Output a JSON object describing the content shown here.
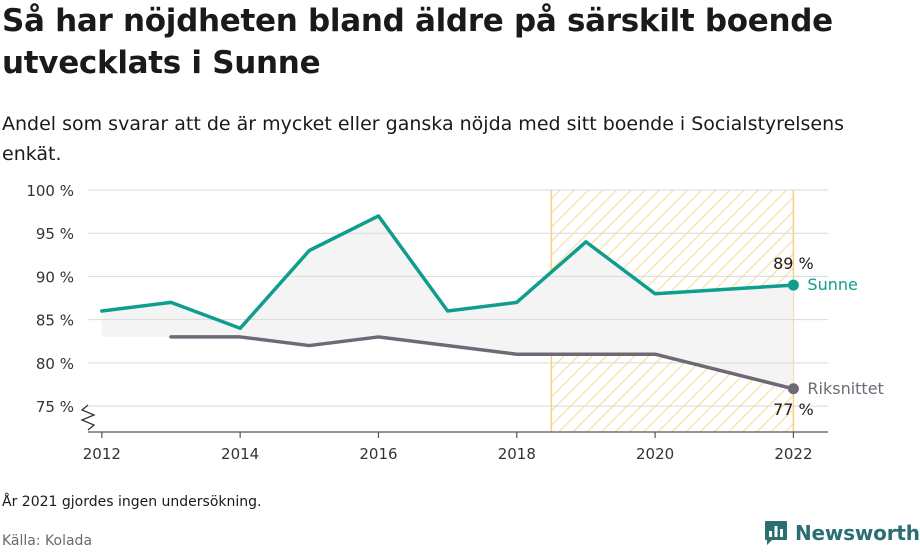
{
  "header": {
    "title": "Så har nöjdheten bland äldre på särskilt boende utvecklats i Sunne",
    "subtitle": "Andel som svarar att de är mycket eller ganska nöjda med sitt boende i Socialstyrelsens enkät."
  },
  "footer": {
    "note": "År 2021 gjordes ingen undersökning.",
    "source": "Källa: Kolada",
    "brand": "Newsworthy",
    "brand_icon": "bar-chart-logo-icon"
  },
  "colors": {
    "sunne": "#0f9e8e",
    "riket": "#6e6a75",
    "highlight": "#f3d27a",
    "fill": "#f4f4f5",
    "grid": "#d9d9d9",
    "brand": "#2b6f73"
  },
  "chart_data": {
    "type": "line",
    "ylim": [
      72,
      100
    ],
    "xlim": [
      2011.8,
      2022.5
    ],
    "y_ticks": [
      75,
      80,
      85,
      90,
      95,
      100
    ],
    "y_tick_labels": [
      "75 %",
      "80 %",
      "85 %",
      "90 %",
      "95 %",
      "100 %"
    ],
    "x_ticks": [
      2012,
      2014,
      2016,
      2018,
      2020,
      2022
    ],
    "x_tick_labels": [
      "2012",
      "2014",
      "2016",
      "2018",
      "2020",
      "2022"
    ],
    "y_axis_break": true,
    "highlight_range": [
      2018.5,
      2022
    ],
    "series": [
      {
        "name": "Sunne",
        "x": [
          2012,
          2013,
          2014,
          2015,
          2016,
          2017,
          2018,
          2019,
          2020,
          2022
        ],
        "values": [
          86,
          87,
          84,
          93,
          97,
          86,
          87,
          94,
          88,
          89
        ],
        "end_label": "89 %"
      },
      {
        "name": "Riksnittet",
        "x": [
          2013,
          2014,
          2015,
          2016,
          2018,
          2020,
          2022
        ],
        "values": [
          83,
          83,
          82,
          83,
          81,
          81,
          77
        ],
        "end_label": "77 %"
      }
    ]
  }
}
